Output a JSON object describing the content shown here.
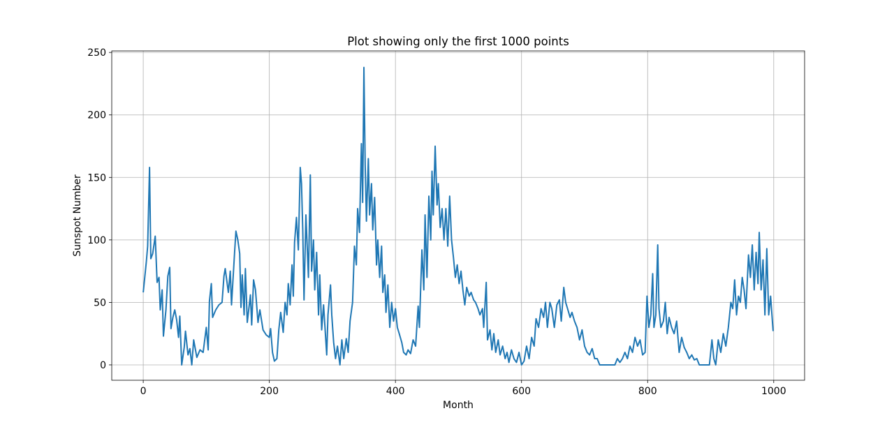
{
  "chart_data": {
    "type": "line",
    "title": "Plot showing only the first 1000 points",
    "x_label": "Month",
    "y_label": "Sunspot Number",
    "xlim": [
      -49.95,
      1048.95
    ],
    "ylim": [
      -12.3,
      251.2
    ],
    "xticks": [
      0,
      200,
      400,
      600,
      800,
      1000
    ],
    "yticks": [
      0,
      50,
      100,
      150,
      200,
      250
    ],
    "grid": true,
    "series": [
      {
        "name": "Sunspot Number",
        "color": "#1f77b4",
        "x": [
          0,
          5,
          7,
          10,
          12,
          15,
          19,
          22,
          25,
          27,
          30,
          32,
          36,
          39,
          42,
          44,
          47,
          50,
          53,
          56,
          58,
          61,
          65,
          67,
          71,
          74,
          77,
          80,
          85,
          90,
          95,
          100,
          103,
          105,
          108,
          110,
          115,
          120,
          125,
          128,
          130,
          135,
          138,
          140,
          145,
          147,
          150,
          153,
          155,
          157,
          160,
          162,
          165,
          170,
          172,
          175,
          178,
          182,
          185,
          190,
          195,
          200,
          202,
          205,
          208,
          212,
          215,
          218,
          222,
          225,
          228,
          230,
          233,
          236,
          238,
          240,
          243,
          246,
          249,
          251,
          253,
          255,
          258,
          262,
          265,
          267,
          270,
          272,
          275,
          278,
          280,
          283,
          286,
          289,
          291,
          293,
          297,
          299,
          302,
          305,
          308,
          312,
          315,
          318,
          322,
          325,
          328,
          332,
          335,
          338,
          340,
          343,
          346,
          348,
          350,
          352,
          354,
          357,
          359,
          362,
          364,
          367,
          370,
          372,
          375,
          378,
          380,
          383,
          385,
          388,
          391,
          394,
          397,
          400,
          403,
          406,
          410,
          413,
          417,
          420,
          424,
          428,
          432,
          436,
          438,
          442,
          445,
          447,
          450,
          453,
          456,
          458,
          460,
          463,
          466,
          468,
          471,
          474,
          477,
          480,
          483,
          486,
          489,
          492,
          495,
          498,
          501,
          504,
          507,
          510,
          513,
          517,
          520,
          524,
          527,
          531,
          534,
          538,
          540,
          544,
          546,
          550,
          553,
          556,
          559,
          563,
          566,
          570,
          574,
          577,
          580,
          584,
          588,
          592,
          596,
          600,
          604,
          608,
          612,
          616,
          620,
          623,
          627,
          631,
          635,
          638,
          641,
          645,
          648,
          652,
          656,
          660,
          663,
          667,
          670,
          673,
          677,
          680,
          684,
          688,
          692,
          696,
          700,
          704,
          708,
          712,
          716,
          720,
          724,
          730,
          740,
          748,
          752,
          756,
          760,
          764,
          768,
          772,
          776,
          780,
          784,
          788,
          792,
          796,
          799,
          802,
          805,
          808,
          810,
          813,
          816,
          818,
          821,
          825,
          828,
          831,
          834,
          838,
          842,
          846,
          850,
          854,
          858,
          862,
          866,
          870,
          874,
          878,
          882,
          890,
          898,
          902,
          905,
          908,
          912,
          916,
          920,
          924,
          928,
          932,
          935,
          938,
          941,
          944,
          947,
          950,
          953,
          956,
          960,
          963,
          966,
          969,
          972,
          975,
          977,
          980,
          983,
          986,
          989,
          992,
          995,
          999
        ],
        "values": [
          58,
          83,
          95,
          158,
          85,
          89,
          103,
          66,
          70,
          44,
          60,
          23,
          44,
          71,
          78,
          29,
          38,
          44,
          36,
          22,
          39,
          0,
          14,
          27,
          8,
          13,
          0,
          20,
          6,
          12,
          10,
          30,
          12,
          51,
          65,
          38,
          44,
          48,
          50,
          71,
          77,
          58,
          75,
          48,
          91,
          107,
          100,
          89,
          46,
          72,
          40,
          77,
          34,
          56,
          32,
          68,
          60,
          34,
          44,
          28,
          24,
          22,
          29,
          10,
          3,
          5,
          28,
          42,
          26,
          50,
          40,
          65,
          48,
          80,
          55,
          98,
          118,
          92,
          158,
          145,
          108,
          52,
          120,
          70,
          152,
          75,
          100,
          60,
          90,
          40,
          72,
          28,
          48,
          24,
          8,
          40,
          64,
          40,
          18,
          5,
          15,
          0,
          20,
          5,
          21,
          10,
          35,
          50,
          95,
          80,
          125,
          106,
          177,
          130,
          238,
          160,
          115,
          165,
          120,
          145,
          108,
          134,
          80,
          100,
          70,
          95,
          58,
          72,
          42,
          64,
          30,
          50,
          35,
          45,
          30,
          25,
          18,
          10,
          8,
          12,
          9,
          20,
          15,
          47,
          30,
          92,
          60,
          120,
          70,
          135,
          100,
          155,
          120,
          175,
          128,
          145,
          110,
          125,
          100,
          125,
          95,
          135,
          100,
          86,
          70,
          80,
          65,
          75,
          60,
          48,
          62,
          55,
          58,
          52,
          50,
          45,
          40,
          45,
          30,
          66,
          20,
          28,
          12,
          25,
          10,
          20,
          8,
          15,
          5,
          10,
          2,
          12,
          5,
          2,
          10,
          0,
          3,
          15,
          5,
          22,
          15,
          37,
          30,
          45,
          38,
          50,
          30,
          50,
          45,
          30,
          48,
          52,
          35,
          62,
          50,
          45,
          38,
          42,
          35,
          30,
          20,
          28,
          15,
          10,
          8,
          13,
          5,
          5,
          0,
          0,
          0,
          0,
          5,
          2,
          5,
          10,
          5,
          15,
          10,
          22,
          15,
          20,
          8,
          10,
          55,
          30,
          40,
          73,
          30,
          40,
          96,
          45,
          30,
          35,
          50,
          25,
          38,
          30,
          25,
          35,
          10,
          22,
          14,
          10,
          5,
          8,
          4,
          5,
          0,
          0,
          0,
          20,
          5,
          0,
          20,
          10,
          25,
          15,
          30,
          50,
          45,
          68,
          40,
          55,
          50,
          70,
          60,
          45,
          88,
          70,
          96,
          60,
          90,
          65,
          106,
          60,
          84,
          40,
          93,
          40,
          55,
          27
        ]
      }
    ]
  }
}
